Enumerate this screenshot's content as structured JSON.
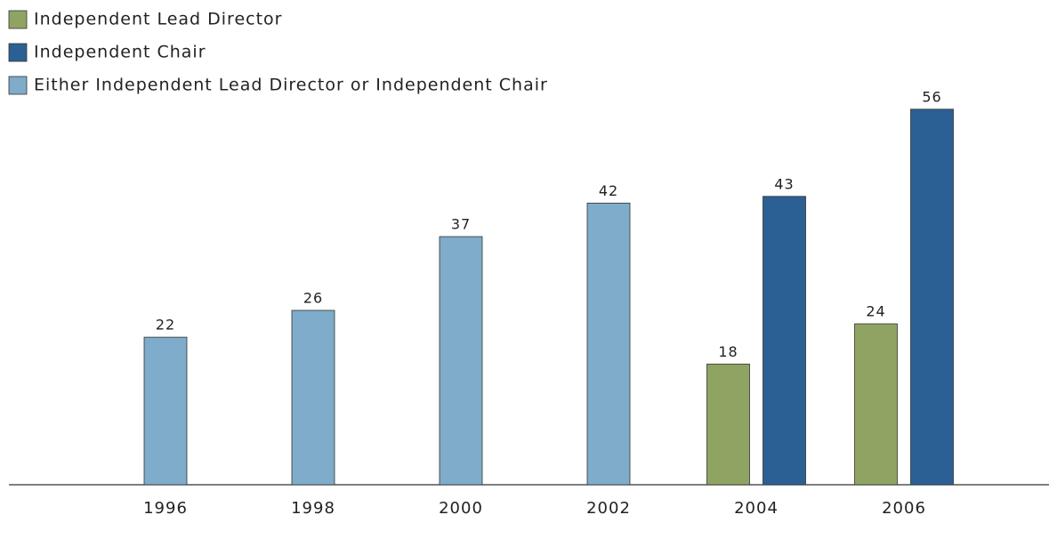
{
  "chart_data": {
    "type": "bar",
    "categories": [
      "1996",
      "1998",
      "2000",
      "2002",
      "2004",
      "2006"
    ],
    "series": [
      {
        "name": "Independent Lead Director",
        "color": "#8fa462",
        "values": [
          null,
          null,
          null,
          null,
          18,
          24
        ]
      },
      {
        "name": "Independent Chair",
        "color": "#2b6094",
        "values": [
          null,
          null,
          null,
          null,
          43,
          56
        ]
      },
      {
        "name": "Either Independent Lead Director or Independent Chair",
        "color": "#7eacca",
        "values": [
          22,
          26,
          37,
          42,
          null,
          null
        ]
      }
    ]
  }
}
